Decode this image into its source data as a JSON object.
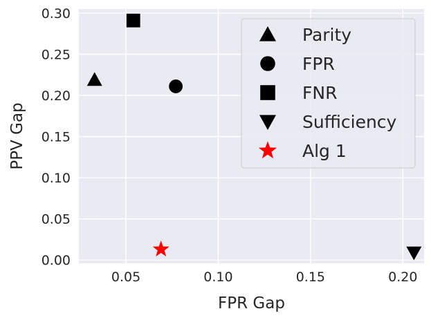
{
  "chart_data": {
    "type": "scatter",
    "title": "",
    "xlabel": "FPR Gap",
    "ylabel": "PPV Gap",
    "xlim": [
      0.0245,
      0.2115
    ],
    "ylim": [
      -0.004,
      0.305
    ],
    "xticks": [
      0.05,
      0.1,
      0.15,
      0.2
    ],
    "xtick_labels": [
      "0.05",
      "0.10",
      "0.15",
      "0.20"
    ],
    "yticks": [
      0.0,
      0.05,
      0.1,
      0.15,
      0.2,
      0.25,
      0.3
    ],
    "ytick_labels": [
      "0.00",
      "0.05",
      "0.10",
      "0.15",
      "0.20",
      "0.25",
      "0.30"
    ],
    "grid": true,
    "background": "#eaeaf2",
    "grid_color": "#ffffff",
    "legend_position": "top-right",
    "series": [
      {
        "name": "Parity",
        "marker": "triangle-up",
        "color": "#000000",
        "x": [
          0.033
        ],
        "y": [
          0.219
        ]
      },
      {
        "name": "FPR",
        "marker": "circle",
        "color": "#000000",
        "x": [
          0.077
        ],
        "y": [
          0.211
        ]
      },
      {
        "name": "FNR",
        "marker": "square",
        "color": "#000000",
        "x": [
          0.054
        ],
        "y": [
          0.291
        ]
      },
      {
        "name": "Sufficiency",
        "marker": "triangle-down",
        "color": "#000000",
        "x": [
          0.206
        ],
        "y": [
          0.009
        ]
      },
      {
        "name": "Alg 1",
        "marker": "star",
        "color": "#ff0000",
        "x": [
          0.069
        ],
        "y": [
          0.013
        ]
      }
    ]
  }
}
